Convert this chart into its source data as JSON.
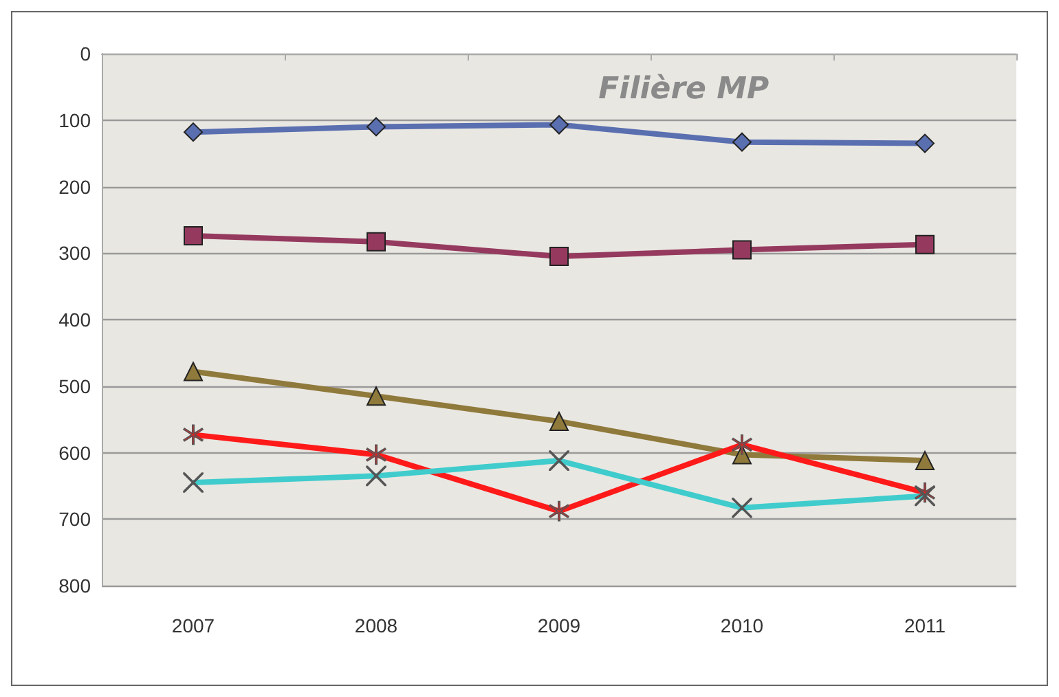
{
  "chart_data": {
    "type": "line",
    "title": "Filière MP",
    "categories": [
      "2007",
      "2008",
      "2009",
      "2010",
      "2011"
    ],
    "ylim": [
      800,
      0
    ],
    "yticks": [
      0,
      100,
      200,
      300,
      400,
      500,
      600,
      700,
      800
    ],
    "grid": "y",
    "series": [
      {
        "color": "#5a6fb0",
        "marker": "diamond",
        "values": [
          118,
          110,
          107,
          133,
          135
        ]
      },
      {
        "color": "#953a5e",
        "marker": "square",
        "values": [
          274,
          283,
          305,
          295,
          287
        ]
      },
      {
        "color": "#8f7a3c",
        "marker": "triangle",
        "values": [
          478,
          515,
          553,
          603,
          612
        ]
      },
      {
        "color": "#ff1a1a",
        "marker": "star",
        "values": [
          573,
          603,
          688,
          588,
          660
        ]
      },
      {
        "color": "#40cccc",
        "marker": "cross",
        "values": [
          645,
          635,
          612,
          683,
          665
        ]
      }
    ]
  }
}
